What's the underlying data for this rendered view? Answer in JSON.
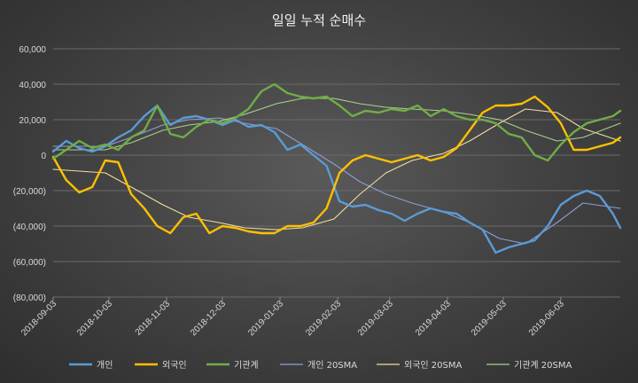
{
  "chart_data": {
    "type": "line",
    "title": "일일 누적 순매수",
    "y_tick_labels": [
      "60,000",
      "40,000",
      "20,000",
      "0",
      "(20,000)",
      "(40,000)",
      "(60,000)",
      "(80,000)"
    ],
    "ylim": [
      -80000,
      60000
    ],
    "x_tick_labels": [
      "2018-09-03",
      "2018-10-03",
      "2018-11-03",
      "2018-12-03",
      "2019-01-03",
      "2019-02-03",
      "2019-03-03",
      "2019-04-03",
      "2019-05-03",
      "2019-06-03"
    ],
    "x_range": [
      "2018-09-03",
      "2019-07-05"
    ],
    "grid": true,
    "legend_position": "bottom",
    "colors": {
      "개인": "#5b9bd5",
      "외국인": "#ffc000",
      "기관계": "#70ad47",
      "개인 20SMA": "#8e9ed8",
      "외국인 20SMA": "#f2dca0",
      "기관계 20SMA": "#a9d18e"
    },
    "series": [
      {
        "name": "개인",
        "x": [
          "2018-09-03",
          "2018-09-10",
          "2018-09-17",
          "2018-09-24",
          "2018-10-01",
          "2018-10-08",
          "2018-10-15",
          "2018-10-22",
          "2018-10-29",
          "2018-11-05",
          "2018-11-12",
          "2018-11-19",
          "2018-11-26",
          "2018-12-03",
          "2018-12-10",
          "2018-12-17",
          "2018-12-24",
          "2018-12-31",
          "2019-01-07",
          "2019-01-14",
          "2019-01-21",
          "2019-01-28",
          "2019-02-04",
          "2019-02-11",
          "2019-02-18",
          "2019-02-25",
          "2019-03-04",
          "2019-03-11",
          "2019-03-18",
          "2019-03-25",
          "2019-04-01",
          "2019-04-08",
          "2019-04-15",
          "2019-04-22",
          "2019-04-29",
          "2019-05-06",
          "2019-05-13",
          "2019-05-20",
          "2019-05-27",
          "2019-06-03",
          "2019-06-10",
          "2019-06-17",
          "2019-06-24",
          "2019-07-01",
          "2019-07-05"
        ],
        "values": [
          2000,
          8000,
          4000,
          2000,
          5000,
          10000,
          14000,
          22000,
          28000,
          17000,
          21000,
          22000,
          20000,
          17000,
          20000,
          16000,
          17000,
          13000,
          3000,
          6000,
          0,
          -6000,
          -26000,
          -29000,
          -28000,
          -31000,
          -33000,
          -37000,
          -33000,
          -30000,
          -32000,
          -33000,
          -38000,
          -42000,
          -55000,
          -52000,
          -50000,
          -48000,
          -40000,
          -28000,
          -23000,
          -20000,
          -23000,
          -33000,
          -41000
        ]
      },
      {
        "name": "외국인",
        "x": [
          "2018-09-03",
          "2018-09-10",
          "2018-09-17",
          "2018-09-24",
          "2018-10-01",
          "2018-10-08",
          "2018-10-15",
          "2018-10-22",
          "2018-10-29",
          "2018-11-05",
          "2018-11-12",
          "2018-11-19",
          "2018-11-26",
          "2018-12-03",
          "2018-12-10",
          "2018-12-17",
          "2018-12-24",
          "2018-12-31",
          "2019-01-07",
          "2019-01-14",
          "2019-01-21",
          "2019-01-28",
          "2019-02-04",
          "2019-02-11",
          "2019-02-18",
          "2019-02-25",
          "2019-03-04",
          "2019-03-11",
          "2019-03-18",
          "2019-03-25",
          "2019-04-01",
          "2019-04-08",
          "2019-04-15",
          "2019-04-22",
          "2019-04-29",
          "2019-05-06",
          "2019-05-13",
          "2019-05-20",
          "2019-05-27",
          "2019-06-03",
          "2019-06-10",
          "2019-06-17",
          "2019-06-24",
          "2019-07-01",
          "2019-07-05"
        ],
        "values": [
          -1000,
          -14000,
          -21000,
          -18000,
          -3000,
          -4000,
          -22000,
          -30000,
          -40000,
          -44000,
          -35000,
          -33000,
          -44000,
          -40000,
          -41000,
          -43000,
          -44000,
          -44000,
          -40000,
          -40000,
          -38000,
          -30000,
          -10000,
          -3000,
          0,
          -2000,
          -4000,
          -2000,
          0,
          -3000,
          -1000,
          4000,
          14000,
          24000,
          28000,
          28000,
          29000,
          33000,
          27000,
          18000,
          3000,
          3000,
          5000,
          7000,
          10000
        ]
      },
      {
        "name": "기관계",
        "x": [
          "2018-09-03",
          "2018-09-10",
          "2018-09-17",
          "2018-09-24",
          "2018-10-01",
          "2018-10-08",
          "2018-10-15",
          "2018-10-22",
          "2018-10-29",
          "2018-11-05",
          "2018-11-12",
          "2018-11-19",
          "2018-11-26",
          "2018-12-03",
          "2018-12-10",
          "2018-12-17",
          "2018-12-24",
          "2018-12-31",
          "2019-01-07",
          "2019-01-14",
          "2019-01-21",
          "2019-01-28",
          "2019-02-04",
          "2019-02-11",
          "2019-02-18",
          "2019-02-25",
          "2019-03-04",
          "2019-03-11",
          "2019-03-18",
          "2019-03-25",
          "2019-04-01",
          "2019-04-08",
          "2019-04-15",
          "2019-04-22",
          "2019-04-29",
          "2019-05-06",
          "2019-05-13",
          "2019-05-20",
          "2019-05-27",
          "2019-06-03",
          "2019-06-10",
          "2019-06-17",
          "2019-06-24",
          "2019-07-01",
          "2019-07-05"
        ],
        "values": [
          -2000,
          3000,
          8000,
          4000,
          6000,
          3000,
          10000,
          14000,
          28000,
          12000,
          10000,
          16000,
          20000,
          18000,
          21000,
          26000,
          36000,
          40000,
          35000,
          33000,
          32000,
          33000,
          28000,
          22000,
          25000,
          24000,
          26000,
          25000,
          28000,
          22000,
          26000,
          22000,
          20000,
          20000,
          18000,
          12000,
          10000,
          0,
          -3000,
          6000,
          13000,
          18000,
          20000,
          22000,
          25000
        ]
      },
      {
        "name": "개인 20SMA",
        "x": [
          "2018-09-03",
          "2018-10-01",
          "2018-10-15",
          "2018-11-01",
          "2018-11-15",
          "2018-12-01",
          "2018-12-15",
          "2019-01-01",
          "2019-01-15",
          "2019-02-01",
          "2019-02-15",
          "2019-03-01",
          "2019-03-15",
          "2019-04-01",
          "2019-04-15",
          "2019-05-01",
          "2019-05-15",
          "2019-06-01",
          "2019-06-15",
          "2019-07-05"
        ],
        "values": [
          5000,
          5000,
          10000,
          17000,
          20000,
          21000,
          18000,
          15000,
          6000,
          -5000,
          -15000,
          -22000,
          -27000,
          -32000,
          -38000,
          -47000,
          -50000,
          -38000,
          -27000,
          -30000
        ]
      },
      {
        "name": "외국인 20SMA",
        "x": [
          "2018-09-03",
          "2018-10-01",
          "2018-10-15",
          "2018-11-01",
          "2018-11-15",
          "2018-12-01",
          "2018-12-15",
          "2019-01-01",
          "2019-01-15",
          "2019-02-01",
          "2019-02-15",
          "2019-03-01",
          "2019-03-15",
          "2019-04-01",
          "2019-04-15",
          "2019-05-01",
          "2019-05-15",
          "2019-06-01",
          "2019-06-15",
          "2019-07-05"
        ],
        "values": [
          -8000,
          -10000,
          -18000,
          -28000,
          -35000,
          -38000,
          -41000,
          -42000,
          -41000,
          -36000,
          -22000,
          -10000,
          -3000,
          1000,
          8000,
          18000,
          26000,
          24000,
          15000,
          8000
        ]
      },
      {
        "name": "기관계 20SMA",
        "x": [
          "2018-09-03",
          "2018-10-01",
          "2018-10-15",
          "2018-11-01",
          "2018-11-15",
          "2018-12-01",
          "2018-12-15",
          "2019-01-01",
          "2019-01-15",
          "2019-02-01",
          "2019-02-15",
          "2019-03-01",
          "2019-03-15",
          "2019-04-01",
          "2019-04-15",
          "2019-05-01",
          "2019-05-15",
          "2019-06-01",
          "2019-06-15",
          "2019-07-05"
        ],
        "values": [
          3000,
          3000,
          7000,
          14000,
          17000,
          19000,
          23000,
          29000,
          32000,
          32000,
          29000,
          27000,
          26000,
          25000,
          23000,
          20000,
          14000,
          8000,
          10000,
          18000
        ]
      }
    ]
  }
}
